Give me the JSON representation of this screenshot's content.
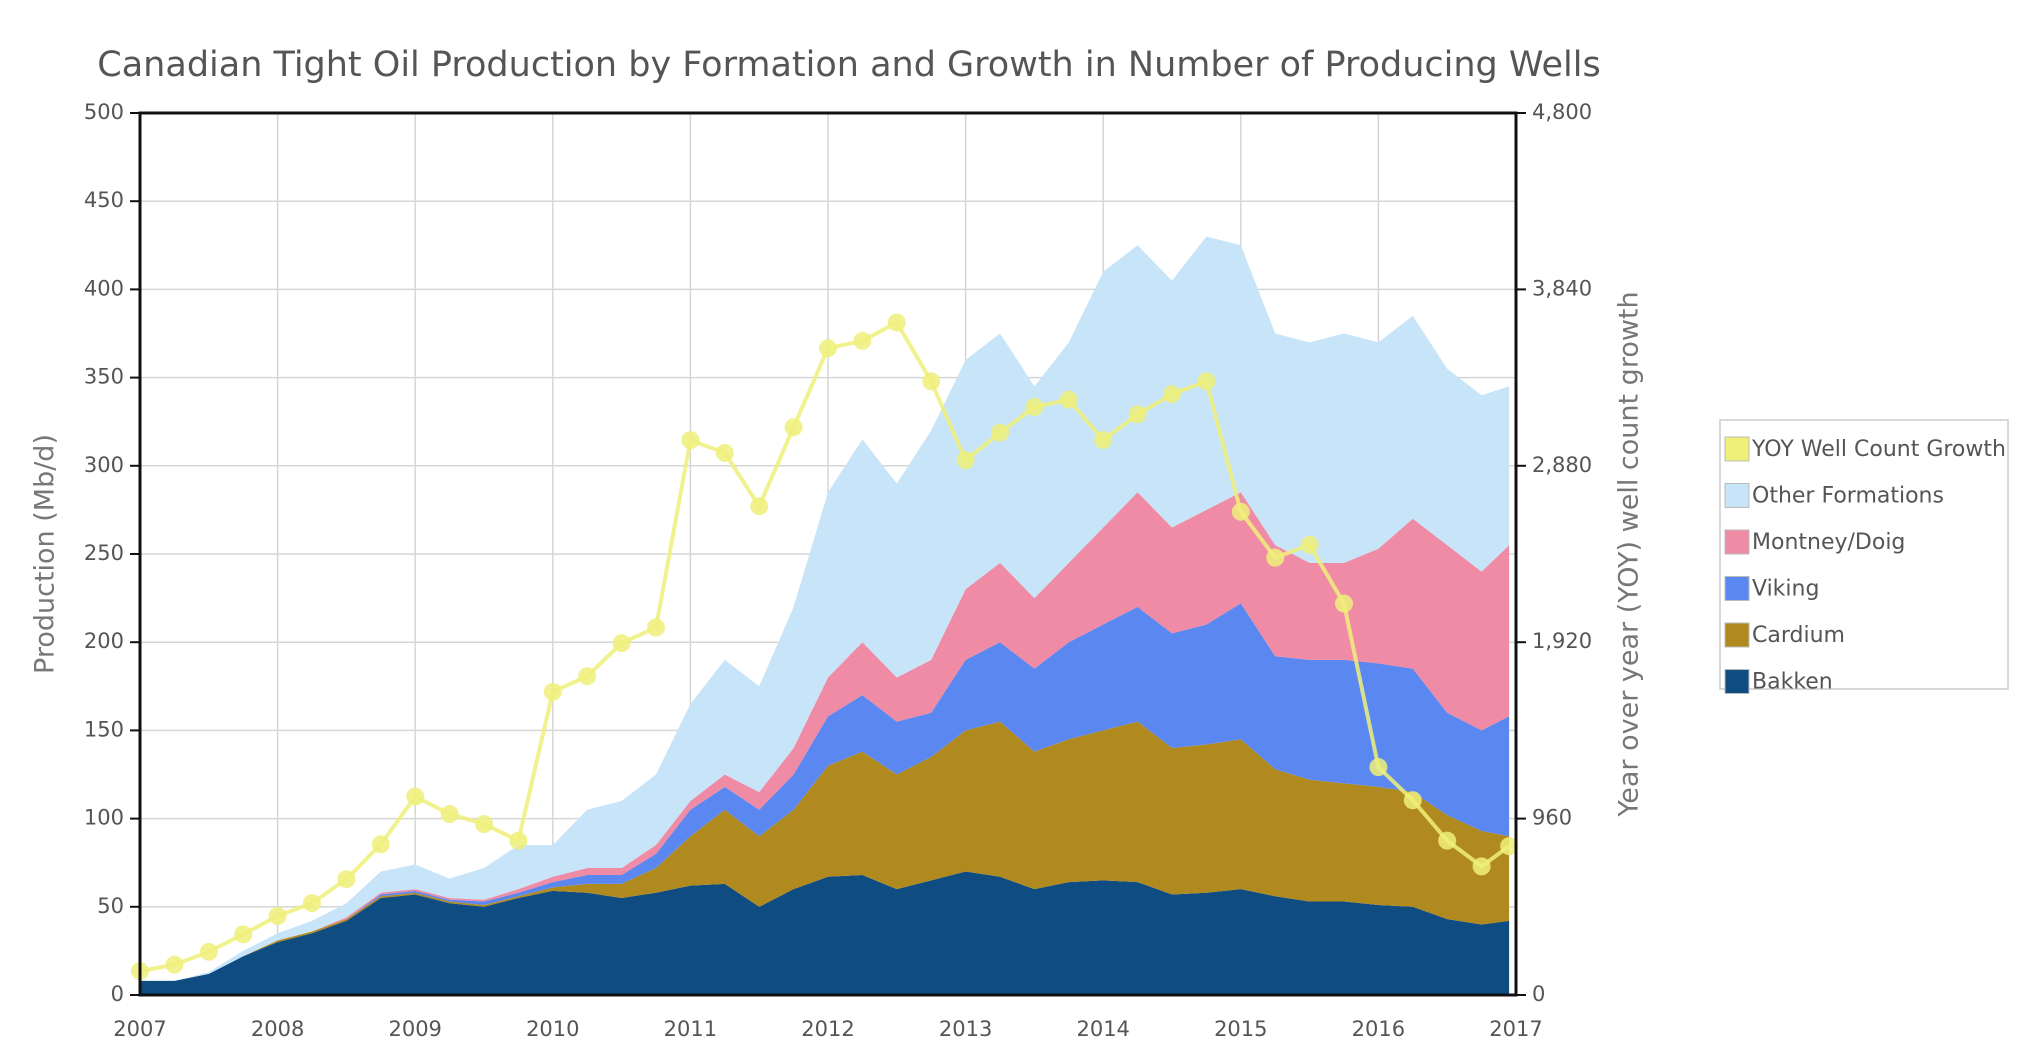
{
  "chart_data": {
    "type": "stacked-area",
    "title": "Canadian Tight Oil Production by Formation and Growth in Number of Producing Wells",
    "y_label": "Production (Mb/d)",
    "y2_label": "Year over year (YOY) well count growth",
    "x": [
      2007,
      2007.25,
      2007.5,
      2007.75,
      2008,
      2008.25,
      2008.5,
      2008.75,
      2009,
      2009.25,
      2009.5,
      2009.75,
      2010,
      2010.25,
      2010.5,
      2010.75,
      2011,
      2011.25,
      2011.5,
      2011.75,
      2012,
      2012.25,
      2012.5,
      2012.75,
      2013,
      2013.25,
      2013.5,
      2013.75,
      2014,
      2014.25,
      2014.5,
      2014.75,
      2015,
      2015.25,
      2015.5,
      2015.75,
      2016,
      2016.25,
      2016.5,
      2016.75,
      2016.95
    ],
    "series": [
      {
        "name": "Bakken",
        "color": "#0f4c81",
        "values": [
          8,
          8,
          12,
          22,
          30,
          35,
          42,
          55,
          57,
          52,
          50,
          55,
          59,
          58,
          55,
          58,
          62,
          63,
          50,
          60,
          67,
          68,
          60,
          65,
          70,
          67,
          60,
          64,
          65,
          64,
          57,
          58,
          60,
          56,
          53,
          53,
          51,
          50,
          43,
          40,
          42
        ]
      },
      {
        "name": "Cardium",
        "color": "#b08a1e",
        "values": [
          0,
          0,
          0,
          0,
          1,
          1,
          1,
          1,
          1,
          1,
          1,
          1,
          2,
          5,
          8,
          14,
          28,
          42,
          40,
          45,
          63,
          70,
          65,
          70,
          80,
          88,
          78,
          81,
          85,
          91,
          83,
          84,
          85,
          72,
          69,
          67,
          67,
          65,
          59,
          53,
          48
        ]
      },
      {
        "name": "Viking",
        "color": "#5b87f0",
        "values": [
          0,
          0,
          0,
          0,
          0,
          0,
          0,
          1,
          1,
          1,
          2,
          2,
          3,
          5,
          5,
          8,
          15,
          13,
          15,
          20,
          28,
          32,
          30,
          25,
          40,
          45,
          47,
          55,
          60,
          65,
          65,
          68,
          77,
          64,
          68,
          70,
          70,
          70,
          58,
          57,
          68
        ]
      },
      {
        "name": "Montney/Doig",
        "color": "#f08ba5",
        "values": [
          0,
          0,
          0,
          0,
          0,
          0,
          1,
          1,
          1,
          1,
          1,
          2,
          3,
          4,
          4,
          5,
          5,
          7,
          10,
          15,
          22,
          30,
          25,
          30,
          40,
          45,
          40,
          45,
          55,
          65,
          60,
          65,
          63,
          63,
          55,
          55,
          65,
          85,
          95,
          90,
          97
        ]
      },
      {
        "name": "Other Formations",
        "color": "#c8e4f8",
        "values": [
          0,
          0,
          1,
          3,
          4,
          6,
          8,
          12,
          14,
          11,
          18,
          25,
          18,
          33,
          38,
          40,
          55,
          65,
          60,
          80,
          105,
          115,
          110,
          130,
          130,
          130,
          120,
          125,
          145,
          140,
          140,
          155,
          140,
          120,
          125,
          130,
          117,
          115,
          100,
          100,
          90
        ]
      },
      {
        "name": "YOY Well Count Growth",
        "color": "#eef07a",
        "axis": "y2",
        "type": "line",
        "values": [
          130,
          165,
          235,
          330,
          430,
          500,
          630,
          820,
          1080,
          985,
          930,
          840,
          1650,
          1735,
          1915,
          2000,
          3020,
          2950,
          2660,
          3090,
          3520,
          3560,
          3660,
          3340,
          2910,
          3060,
          3200,
          3240,
          3020,
          3160,
          3270,
          3340,
          2630,
          2380,
          2450,
          2130,
          1240,
          1060,
          840,
          700,
          810
        ]
      }
    ],
    "xlim": [
      2007,
      2017
    ],
    "xticks": [
      2007,
      2008,
      2009,
      2010,
      2011,
      2012,
      2013,
      2014,
      2015,
      2016,
      2017
    ],
    "ylim": [
      0,
      500
    ],
    "yticks": [
      0,
      50,
      100,
      150,
      200,
      250,
      300,
      350,
      400,
      450,
      500
    ],
    "y2lim": [
      0,
      4800
    ],
    "y2ticks": [
      0,
      960,
      {
        "value": 1920,
        "label": "1,920"
      },
      {
        "value": 2880,
        "label": "2,880"
      },
      {
        "value": 3840,
        "label": "3,840"
      },
      {
        "value": 4800,
        "label": "4,800"
      }
    ],
    "grid": true,
    "legend": "right"
  }
}
